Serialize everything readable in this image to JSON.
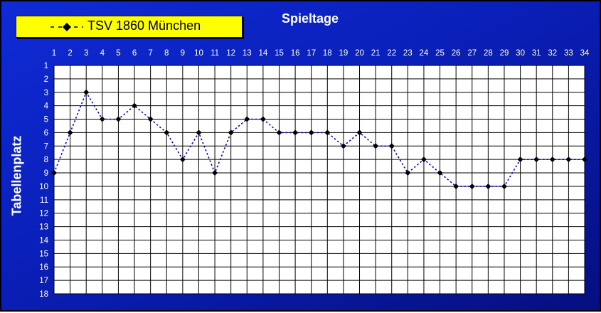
{
  "chart_data": {
    "type": "line",
    "title": "Spieltage",
    "ylabel": "Tabellenplatz",
    "x": [
      1,
      2,
      3,
      4,
      5,
      6,
      7,
      8,
      9,
      10,
      11,
      12,
      13,
      14,
      15,
      16,
      17,
      18,
      19,
      20,
      21,
      22,
      23,
      24,
      25,
      26,
      27,
      28,
      29,
      30,
      31,
      32,
      33,
      34
    ],
    "xlim": [
      1,
      34
    ],
    "ylim": [
      1,
      18
    ],
    "y_inverted": true,
    "grid": true,
    "legend_position": "top-left",
    "series": [
      {
        "name": "TSV 1860 München",
        "values": [
          9,
          6,
          3,
          5,
          5,
          4,
          5,
          6,
          8,
          6,
          9,
          6,
          5,
          5,
          6,
          6,
          6,
          6,
          7,
          6,
          7,
          7,
          9,
          8,
          9,
          10,
          10,
          10,
          10,
          8,
          8,
          8,
          8,
          8
        ],
        "line_color": "#0000cc",
        "line_style": "dotted",
        "marker": "diamond",
        "marker_color": "#000000"
      }
    ]
  },
  "colors": {
    "background_start": "#0f2bd6",
    "background_end": "#060f80",
    "plot_area": "#ffffff",
    "legend_bg": "#ffff00",
    "text": "#ffffff"
  }
}
